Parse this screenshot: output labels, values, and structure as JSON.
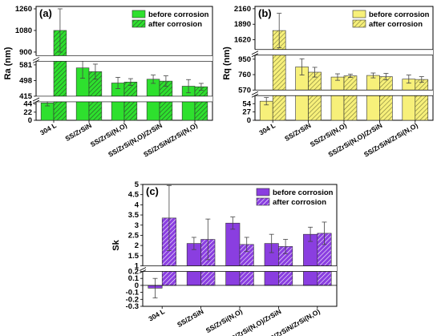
{
  "colors": {
    "panel_a": "#2ee02e",
    "panel_b": "#f7f07a",
    "panel_c": "#8a3ee0",
    "axis": "#000000"
  },
  "chart_data": [
    {
      "type": "bar",
      "panel_label": "(a)",
      "ylabel": "Ra (nm)",
      "categories": [
        "304 L",
        "SS/ZrSiN",
        "SS/ZrSi(N,O)",
        "SS/ZrSi(N,O)/ZrSiN",
        "SS/ZrSiN/ZrSi(N,O)"
      ],
      "y_axis_broken": true,
      "y_segments": [
        [
          0,
          50
        ],
        [
          415,
          600
        ],
        [
          870,
          1280
        ]
      ],
      "y_ticks": [
        0,
        22,
        44,
        415,
        498,
        581,
        900,
        1080,
        1260
      ],
      "legend": {
        "position": "top-right",
        "entries": [
          "before corrosion",
          "after corrosion"
        ]
      },
      "series": [
        {
          "name": "before corrosion",
          "pattern": "solid",
          "values": [
            47,
            565,
            485,
            505,
            468
          ],
          "errors": [
            8,
            55,
            30,
            22,
            35
          ]
        },
        {
          "name": "after corrosion",
          "pattern": "hatched",
          "values": [
            1080,
            545,
            490,
            495,
            465
          ],
          "errors": [
            180,
            40,
            18,
            28,
            18
          ]
        }
      ]
    },
    {
      "type": "bar",
      "panel_label": "(b)",
      "ylabel": "Rq (nm)",
      "categories": [
        "304 L",
        "SS/ZrSiN",
        "SS/ZrSi(N,O)",
        "SS/ZrSi(N,O)/ZrSiN",
        "SS/ZrSiN/ZrSi(N,O)"
      ],
      "y_axis_broken": true,
      "y_segments": [
        [
          0,
          80
        ],
        [
          570,
          1000
        ],
        [
          1450,
          2200
        ]
      ],
      "y_ticks": [
        0,
        27,
        54,
        570,
        760,
        950,
        1620,
        1890,
        2160
      ],
      "legend": {
        "position": "top-right",
        "entries": [
          "before corrosion",
          "after corrosion"
        ]
      },
      "series": [
        {
          "name": "before corrosion",
          "pattern": "solid",
          "values": [
            62,
            855,
            730,
            750,
            705
          ],
          "errors": [
            12,
            100,
            40,
            30,
            50
          ]
        },
        {
          "name": "after corrosion",
          "pattern": "hatched",
          "values": [
            1780,
            790,
            745,
            735,
            700
          ],
          "errors": [
            300,
            60,
            20,
            40,
            35
          ]
        }
      ]
    },
    {
      "type": "bar",
      "panel_label": "(c)",
      "ylabel": "Sk",
      "categories": [
        "304 L",
        "SS/ZrSiN",
        "SS/ZrSi(N,O)",
        "SS/ZrSi(N,O)/ZrSiN",
        "SS/ZrSiN/ZrSi(N,O)"
      ],
      "y_axis_broken": true,
      "y_segments": [
        [
          -0.3,
          0.2
        ],
        [
          1.0,
          5.0
        ]
      ],
      "y_ticks": [
        -0.3,
        -0.2,
        -0.1,
        0.0,
        0.1,
        0.2,
        1.0,
        1.5,
        2.0,
        2.5,
        3.0,
        3.5,
        4.0,
        4.5,
        5.0
      ],
      "legend": {
        "position": "top-right",
        "entries": [
          "before corrosion",
          "after corrosion"
        ]
      },
      "series": [
        {
          "name": "before corrosion",
          "pattern": "solid",
          "values": [
            -0.04,
            2.1,
            3.1,
            2.1,
            2.55
          ],
          "errors": [
            0.14,
            0.3,
            0.3,
            0.45,
            0.35
          ]
        },
        {
          "name": "after corrosion",
          "pattern": "hatched",
          "values": [
            3.35,
            2.3,
            2.05,
            1.95,
            2.6
          ],
          "errors": [
            1.6,
            1.0,
            0.35,
            0.35,
            0.55
          ]
        }
      ]
    }
  ]
}
